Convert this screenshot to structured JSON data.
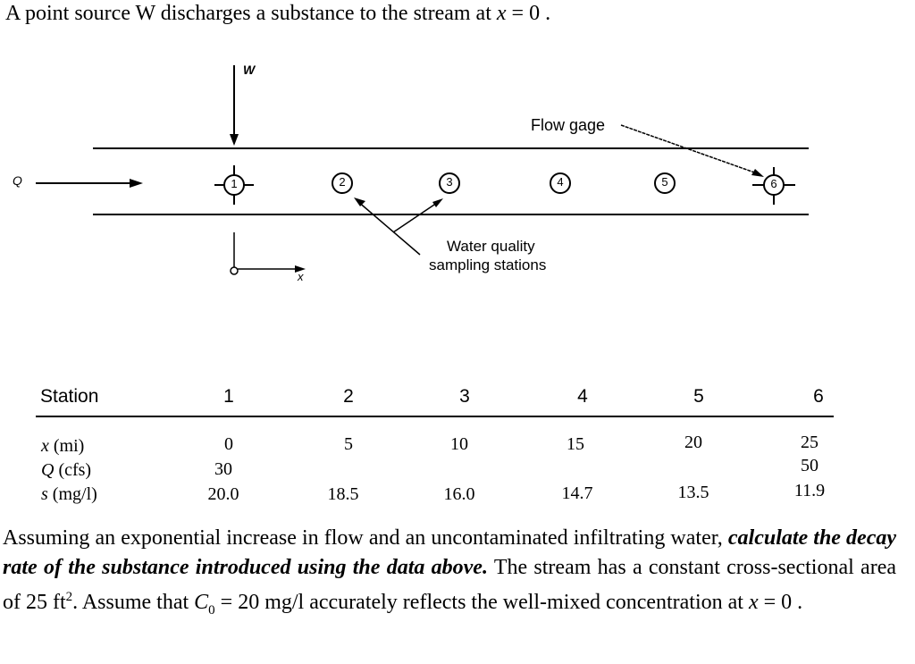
{
  "intro": {
    "before": "A point source W discharges a substance to the stream at ",
    "var": "x",
    "after": " = 0 ."
  },
  "diagram": {
    "source_label": "W",
    "flow_label": "Q",
    "axis_label": "x",
    "flow_gage_label": "Flow gage",
    "sampling_label_line1": "Water quality",
    "sampling_label_line2": "sampling stations",
    "stations": [
      "1",
      "2",
      "3",
      "4",
      "5",
      "6"
    ]
  },
  "table": {
    "header_label": "Station",
    "stations": [
      "1",
      "2",
      "3",
      "4",
      "5",
      "6"
    ],
    "rows": [
      {
        "symbol": "x",
        "unit": " (mi)",
        "values": [
          "0",
          "5",
          "10",
          "15",
          "20",
          "25"
        ]
      },
      {
        "symbol": "Q",
        "unit": " (cfs)",
        "values": [
          "30",
          "",
          "",
          "",
          "",
          "50"
        ]
      },
      {
        "symbol": "s",
        "unit": " (mg/l)",
        "values": [
          "20.0",
          "18.5",
          "16.0",
          "14.7",
          "13.5",
          "11.9"
        ]
      }
    ]
  },
  "paragraph": {
    "p1": "Assuming an exponential increase in flow and an uncontaminated infiltrating water, ",
    "bold": "calculate the decay rate of the substance introduced using the data above.",
    "p2": " The stream has a constant cross-sectional area of 25 ft",
    "sup": "2",
    "p3": ". Assume that ",
    "c_var": "C",
    "c_sub": "0",
    "p4": " = 20 mg/l accurately reflects the well-mixed concentration at ",
    "x_var": "x",
    "p5": " = 0 ."
  }
}
